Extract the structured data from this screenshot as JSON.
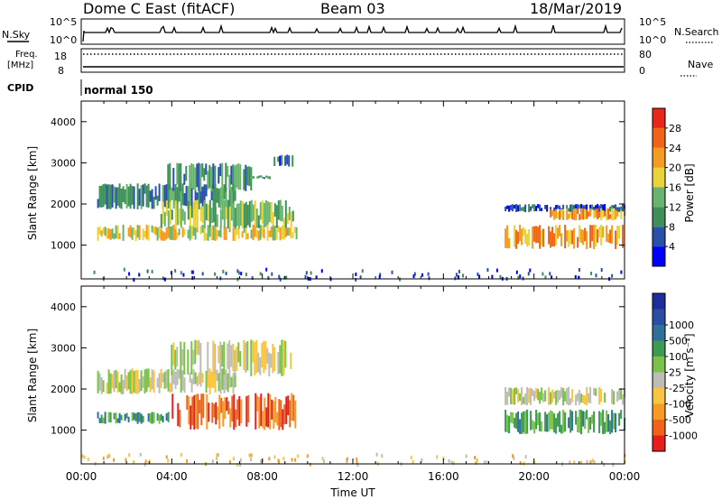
{
  "header": {
    "station": "Dome C East (fitACF)",
    "beam": "Beam 03",
    "date": "18/Mar/2019"
  },
  "strip": {
    "nsky_label": "N.Sky",
    "nsky_ticks": [
      "10^5",
      "10^0"
    ],
    "nsearch_label": "N.Search",
    "nsearch_ticks": [
      "10^5",
      "10^0"
    ],
    "freq_label": "Freq.",
    "freq_unit": "[MHz]",
    "freq_ticks": [
      "18",
      "8"
    ],
    "nave_label": "Nave",
    "nave_ticks": [
      "80",
      "0"
    ],
    "cpid_label": "CPID",
    "cpid_value": "normal 150"
  },
  "colors": {
    "power": [
      "#0000ff",
      "#2a4fa8",
      "#3f8f5a",
      "#6ab36f",
      "#e9d23a",
      "#f59a22",
      "#f06418",
      "#e8261a"
    ],
    "velocity": [
      "#e81c1c",
      "#f0641a",
      "#f59a22",
      "#f7c542",
      "#bdbdb5",
      "#7cc24a",
      "#3c9a52",
      "#2f6f9a",
      "#2b4ea3",
      "#1e2c9c"
    ]
  },
  "chart_data": [
    {
      "type": "heatmap",
      "quantity": "Power",
      "xlabel": "",
      "ylabel": "Slant Range [km]",
      "xlim": [
        0,
        24
      ],
      "ylim": [
        180,
        4500
      ],
      "yticks": [
        "1000",
        "2000",
        "3000",
        "4000"
      ],
      "colorbar_label": "Power [dB]",
      "colorbar_ticks": [
        "4",
        "8",
        "12",
        "16",
        "20",
        "24",
        "28"
      ],
      "bands": [
        {
          "t0": 0.7,
          "t1": 6.8,
          "r0": 1870,
          "r1": 2500,
          "class": 2
        },
        {
          "t0": 3.8,
          "t1": 7.5,
          "r0": 2300,
          "r1": 3000,
          "class": 2
        },
        {
          "t0": 7.5,
          "t1": 8.3,
          "r0": 2600,
          "r1": 2700,
          "class": 2
        },
        {
          "t0": 8.5,
          "t1": 9.3,
          "r0": 2900,
          "r1": 3200,
          "class": 1
        },
        {
          "t0": 0.7,
          "t1": 9.5,
          "r0": 1100,
          "r1": 1500,
          "class": 4
        },
        {
          "t0": 3.5,
          "t1": 9.5,
          "r0": 1400,
          "r1": 2100,
          "class": 3
        },
        {
          "t0": 18.7,
          "t1": 24,
          "r0": 1800,
          "r1": 2000,
          "class": 1
        },
        {
          "t0": 20.7,
          "t1": 24,
          "r0": 1600,
          "r1": 1900,
          "class": 5
        },
        {
          "t0": 18.7,
          "t1": 24,
          "r0": 900,
          "r1": 1500,
          "class": 5
        }
      ]
    },
    {
      "type": "heatmap",
      "quantity": "Velocity",
      "xlabel": "Time UT",
      "ylabel": "Slant Range [km]",
      "xlim": [
        0,
        24
      ],
      "ylim": [
        180,
        4500
      ],
      "xticks": [
        "00:00",
        "04:00",
        "08:00",
        "12:00",
        "16:00",
        "20:00",
        "00:00"
      ],
      "yticks": [
        "1000",
        "2000",
        "3000",
        "4000"
      ],
      "colorbar_label": "Velocity [m s⁻¹]",
      "colorbar_ticks": [
        "-1000",
        "-500",
        "-100",
        "-25",
        "25",
        "100",
        "500",
        "1000"
      ],
      "bands": [
        {
          "t0": 0.7,
          "t1": 6.8,
          "r0": 1870,
          "r1": 2500,
          "class": 4
        },
        {
          "t0": 3.8,
          "t1": 9.3,
          "r0": 2300,
          "r1": 3200,
          "class": 4
        },
        {
          "t0": 0.7,
          "t1": 4.0,
          "r0": 1150,
          "r1": 1450,
          "class": 6
        },
        {
          "t0": 4.0,
          "t1": 9.5,
          "r0": 1000,
          "r1": 1900,
          "class": 1
        },
        {
          "t0": 18.7,
          "t1": 24,
          "r0": 1600,
          "r1": 2050,
          "class": 4
        },
        {
          "t0": 18.7,
          "t1": 24,
          "r0": 900,
          "r1": 1500,
          "class": 6
        }
      ]
    }
  ]
}
